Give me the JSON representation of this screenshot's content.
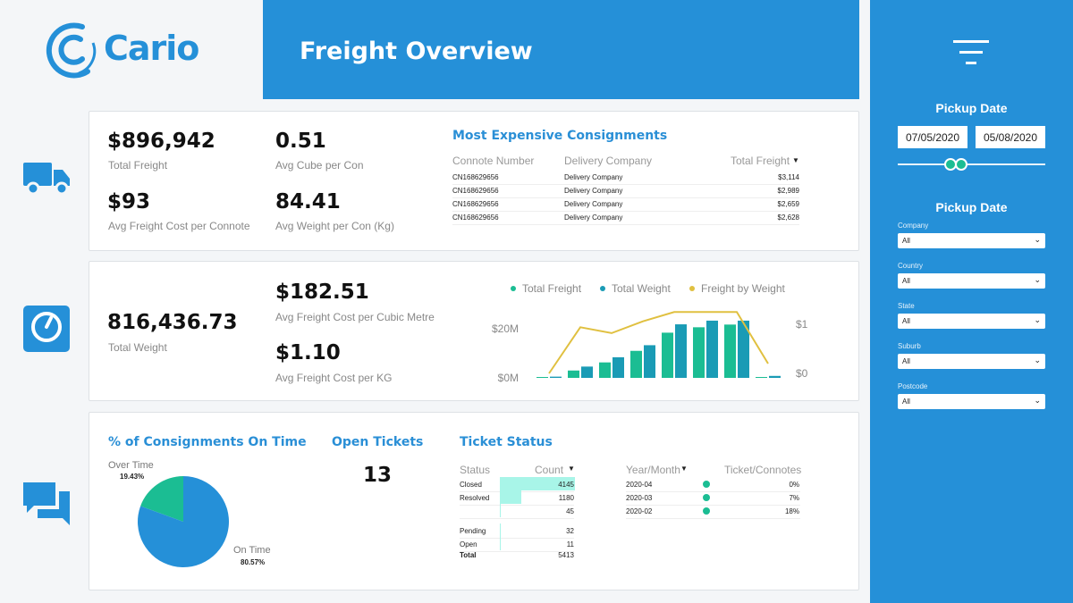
{
  "brand": {
    "logo_text": "Cario",
    "primary": "#2590d8"
  },
  "header": {
    "title": "Freight Overview"
  },
  "kpis1": [
    {
      "value": "$896,942",
      "label": "Total Freight"
    },
    {
      "value": "0.51",
      "label": "Avg Cube per Con"
    },
    {
      "value": "$93",
      "label": "Avg Freight Cost per Connote"
    },
    {
      "value": "84.41",
      "label": "Avg Weight per Con (Kg)"
    }
  ],
  "expensive": {
    "title": "Most Expensive Consignments",
    "headers": [
      "Connote Number",
      "Delivery Company",
      "Total Freight"
    ],
    "rows": [
      [
        "CN168629656",
        "Delivery Company",
        "$3,114"
      ],
      [
        "CN168629656",
        "Delivery Company",
        "$2,989"
      ],
      [
        "CN168629656",
        "Delivery Company",
        "$2,659"
      ],
      [
        "CN168629656",
        "Delivery Company",
        "$2,628"
      ]
    ]
  },
  "kpis2": [
    {
      "value": "816,436.73",
      "label": "Total Weight"
    },
    {
      "value": "$182.51",
      "label": "Avg Freight Cost per Cubic Metre"
    },
    {
      "value": "$1.10",
      "label": "Avg Freight Cost per KG"
    }
  ],
  "chart_data": {
    "type": "bar",
    "legend_position": "top",
    "series": [
      {
        "name": "Total Freight",
        "kind": "bar",
        "color": "#1bbd93",
        "axis": "left",
        "values": [
          0.2,
          3,
          6.3,
          11,
          18.4,
          20.6,
          21.7,
          0.2
        ]
      },
      {
        "name": "Total Weight",
        "kind": "bar",
        "color": "#1a9bb5",
        "axis": "left",
        "values": [
          0.5,
          4.6,
          8.4,
          13.3,
          21.8,
          23.3,
          23.3,
          0.8
        ]
      },
      {
        "name": "Freight by Weight",
        "kind": "line",
        "color": "#e0c040",
        "axis": "right",
        "values": [
          0,
          0.94,
          0.82,
          1.06,
          1.25,
          1.25,
          1.25,
          0.2
        ]
      }
    ],
    "left_ticks": [
      "$0M",
      "$20M"
    ],
    "right_ticks": [
      "$0",
      "$1"
    ],
    "left_ylim": [
      0,
      20
    ],
    "right_ylim": [
      0,
      1
    ],
    "grid": false
  },
  "ontime": {
    "title": "% of Consignments On Time",
    "slices": [
      {
        "label": "Over Time",
        "pct": "19.43%",
        "value": 19.43,
        "color": "#1bbd93"
      },
      {
        "label": "On Time",
        "pct": "80.57%",
        "value": 80.57,
        "color": "#2590d8"
      }
    ]
  },
  "tickets": {
    "title": "Open Tickets",
    "value": "13"
  },
  "status": {
    "title": "Ticket Status",
    "headers": [
      "Status",
      "Count"
    ],
    "rows": [
      [
        "Closed",
        "4145",
        4145
      ],
      [
        "Resolved",
        "1180",
        1180
      ],
      [
        "",
        "45",
        45
      ],
      [
        "Pending",
        "32",
        32
      ],
      [
        "Open",
        "11",
        11
      ]
    ],
    "total": [
      "Total",
      "5413"
    ],
    "bar_color": "#a8f5e8"
  },
  "monthly": {
    "headers": [
      "Year/Month",
      "Ticket/Connotes"
    ],
    "rows": [
      [
        "2020-04",
        "0%"
      ],
      [
        "2020-03",
        "7%"
      ],
      [
        "2020-02",
        "18%"
      ]
    ]
  },
  "sidebar": {
    "date_title": "Pickup Date",
    "date_from": "07/05/2020",
    "date_to": "05/08/2020",
    "filters_title": "Pickup Date",
    "filters": [
      {
        "label": "Company",
        "value": "All"
      },
      {
        "label": "Country",
        "value": "All"
      },
      {
        "label": "State",
        "value": "All"
      },
      {
        "label": "Suburb",
        "value": "All"
      },
      {
        "label": "Postcode",
        "value": "All"
      }
    ]
  }
}
